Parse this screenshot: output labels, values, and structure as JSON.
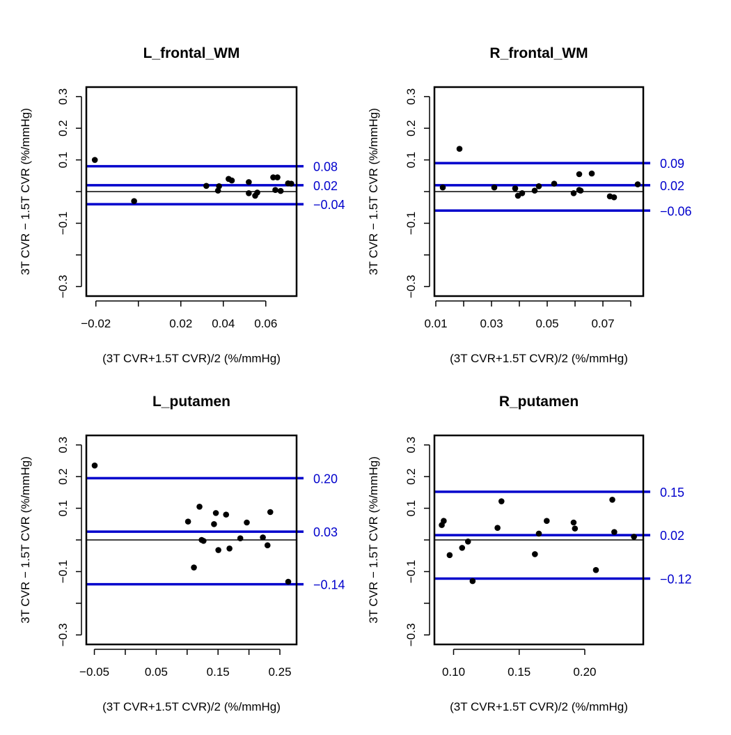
{
  "colors": {
    "limit_line": "#0000cc",
    "points": "#000000",
    "axes": "#000000",
    "zero_line": "#000000"
  },
  "chart_data": [
    {
      "type": "scatter",
      "title": "L_frontal_WM",
      "xlabel": "(3T CVR+1.5T CVR)/2 (%/mmHg)",
      "ylabel": "3T CVR − 1.5T CVR (%/mmHg)",
      "xlim": [
        -0.0245,
        0.0745
      ],
      "ylim": [
        -0.33,
        0.33
      ],
      "xticks": [
        -0.02,
        0.0,
        0.02,
        0.04,
        0.06
      ],
      "xtick_labels": [
        "−0.02",
        "",
        "0.02",
        "0.04",
        "0.06"
      ],
      "yticks": [
        -0.3,
        -0.2,
        -0.1,
        0.0,
        0.1,
        0.2,
        0.3
      ],
      "ytick_labels": [
        "−0.3",
        "",
        "−0.1",
        "",
        "0.1",
        "0.2",
        "0.3"
      ],
      "grid": false,
      "hlines": [
        {
          "value": 0.08,
          "label": "0.08",
          "role": "upper limit"
        },
        {
          "value": 0.02,
          "label": "0.02",
          "role": "mean difference"
        },
        {
          "value": -0.04,
          "label": "−0.04",
          "role": "lower limit"
        }
      ],
      "zero_line": 0.0,
      "points": [
        {
          "x": -0.0205,
          "y": 0.1
        },
        {
          "x": -0.002,
          "y": -0.03
        },
        {
          "x": 0.032,
          "y": 0.018
        },
        {
          "x": 0.0375,
          "y": 0.003
        },
        {
          "x": 0.038,
          "y": 0.017
        },
        {
          "x": 0.0425,
          "y": 0.04
        },
        {
          "x": 0.044,
          "y": 0.035
        },
        {
          "x": 0.052,
          "y": 0.03
        },
        {
          "x": 0.052,
          "y": -0.005
        },
        {
          "x": 0.055,
          "y": -0.013
        },
        {
          "x": 0.056,
          "y": -0.003
        },
        {
          "x": 0.0635,
          "y": 0.045
        },
        {
          "x": 0.0645,
          "y": 0.005
        },
        {
          "x": 0.0655,
          "y": 0.045
        },
        {
          "x": 0.067,
          "y": 0.002
        },
        {
          "x": 0.0705,
          "y": 0.026
        },
        {
          "x": 0.072,
          "y": 0.025
        }
      ]
    },
    {
      "type": "scatter",
      "title": "R_frontal_WM",
      "xlabel": "(3T CVR+1.5T CVR)/2 (%/mmHg)",
      "ylabel": "3T CVR − 1.5T CVR (%/mmHg)",
      "xlim": [
        0.0095,
        0.0845
      ],
      "ylim": [
        -0.33,
        0.33
      ],
      "xticks": [
        0.01,
        0.02,
        0.03,
        0.04,
        0.05,
        0.06,
        0.07,
        0.08
      ],
      "xtick_labels": [
        "0.01",
        "",
        "0.03",
        "",
        "0.05",
        "",
        "0.07",
        ""
      ],
      "yticks": [
        -0.3,
        -0.2,
        -0.1,
        0.0,
        0.1,
        0.2,
        0.3
      ],
      "ytick_labels": [
        "−0.3",
        "",
        "−0.1",
        "",
        "0.1",
        "0.2",
        "0.3"
      ],
      "grid": false,
      "hlines": [
        {
          "value": 0.09,
          "label": "0.09",
          "role": "upper limit"
        },
        {
          "value": 0.02,
          "label": "0.02",
          "role": "mean difference"
        },
        {
          "value": -0.06,
          "label": "−0.06",
          "role": "lower limit"
        }
      ],
      "zero_line": 0.0,
      "points": [
        {
          "x": 0.0125,
          "y": 0.013
        },
        {
          "x": 0.0185,
          "y": 0.135
        },
        {
          "x": 0.031,
          "y": 0.013
        },
        {
          "x": 0.0385,
          "y": 0.01
        },
        {
          "x": 0.0395,
          "y": -0.013
        },
        {
          "x": 0.041,
          "y": -0.005
        },
        {
          "x": 0.0455,
          "y": 0.003
        },
        {
          "x": 0.047,
          "y": 0.017
        },
        {
          "x": 0.0525,
          "y": 0.025
        },
        {
          "x": 0.0595,
          "y": -0.005
        },
        {
          "x": 0.0615,
          "y": 0.055
        },
        {
          "x": 0.0615,
          "y": 0.005
        },
        {
          "x": 0.062,
          "y": 0.003
        },
        {
          "x": 0.066,
          "y": 0.057
        },
        {
          "x": 0.0725,
          "y": -0.015
        },
        {
          "x": 0.074,
          "y": -0.018
        },
        {
          "x": 0.0825,
          "y": 0.023
        }
      ]
    },
    {
      "type": "scatter",
      "title": "L_putamen",
      "xlabel": "(3T CVR+1.5T CVR)/2 (%/mmHg)",
      "ylabel": "3T CVR − 1.5T CVR (%/mmHg)",
      "xlim": [
        -0.063,
        0.277
      ],
      "ylim": [
        -0.33,
        0.33
      ],
      "xticks": [
        -0.05,
        0.0,
        0.05,
        0.1,
        0.15,
        0.2,
        0.25
      ],
      "xtick_labels": [
        "−0.05",
        "",
        "0.05",
        "",
        "0.15",
        "",
        "0.25"
      ],
      "yticks": [
        -0.3,
        -0.2,
        -0.1,
        0.0,
        0.1,
        0.2,
        0.3
      ],
      "ytick_labels": [
        "−0.3",
        "",
        "−0.1",
        "",
        "0.1",
        "0.2",
        "0.3"
      ],
      "grid": false,
      "hlines": [
        {
          "value": 0.195,
          "label": "0.20",
          "role": "upper limit"
        },
        {
          "value": 0.026,
          "label": "0.03",
          "role": "mean difference"
        },
        {
          "value": -0.14,
          "label": "−0.14",
          "role": "lower limit"
        }
      ],
      "zero_line": 0.0,
      "points": [
        {
          "x": -0.0495,
          "y": 0.235
        },
        {
          "x": 0.1015,
          "y": 0.058
        },
        {
          "x": 0.111,
          "y": -0.087
        },
        {
          "x": 0.12,
          "y": 0.105
        },
        {
          "x": 0.1235,
          "y": 0.0
        },
        {
          "x": 0.1265,
          "y": -0.003
        },
        {
          "x": 0.1435,
          "y": 0.05
        },
        {
          "x": 0.1465,
          "y": 0.085
        },
        {
          "x": 0.1505,
          "y": -0.032
        },
        {
          "x": 0.163,
          "y": 0.08
        },
        {
          "x": 0.1685,
          "y": -0.027
        },
        {
          "x": 0.186,
          "y": 0.005
        },
        {
          "x": 0.1965,
          "y": 0.055
        },
        {
          "x": 0.2225,
          "y": 0.008
        },
        {
          "x": 0.23,
          "y": -0.017
        },
        {
          "x": 0.2345,
          "y": 0.088
        },
        {
          "x": 0.2635,
          "y": -0.132
        }
      ]
    },
    {
      "type": "scatter",
      "title": "R_putamen",
      "xlabel": "(3T CVR+1.5T CVR)/2 (%/mmHg)",
      "ylabel": "3T CVR − 1.5T CVR (%/mmHg)",
      "xlim": [
        0.0854,
        0.2446
      ],
      "ylim": [
        -0.33,
        0.33
      ],
      "xticks": [
        0.1,
        0.15,
        0.2
      ],
      "xtick_labels": [
        "0.10",
        "0.15",
        "0.20"
      ],
      "yticks": [
        -0.3,
        -0.2,
        -0.1,
        0.0,
        0.1,
        0.2,
        0.3
      ],
      "ytick_labels": [
        "−0.3",
        "",
        "−0.1",
        "",
        "0.1",
        "0.2",
        "0.3"
      ],
      "grid": false,
      "hlines": [
        {
          "value": 0.152,
          "label": "0.15",
          "role": "upper limit"
        },
        {
          "value": 0.015,
          "label": "0.02",
          "role": "mean difference"
        },
        {
          "value": -0.122,
          "label": "−0.12",
          "role": "lower limit"
        }
      ],
      "zero_line": 0.0,
      "points": [
        {
          "x": 0.091,
          "y": 0.047
        },
        {
          "x": 0.0925,
          "y": 0.06
        },
        {
          "x": 0.097,
          "y": -0.048
        },
        {
          "x": 0.1065,
          "y": -0.025
        },
        {
          "x": 0.111,
          "y": -0.005
        },
        {
          "x": 0.1145,
          "y": -0.13
        },
        {
          "x": 0.1335,
          "y": 0.038
        },
        {
          "x": 0.1365,
          "y": 0.122
        },
        {
          "x": 0.162,
          "y": -0.045
        },
        {
          "x": 0.165,
          "y": 0.02
        },
        {
          "x": 0.171,
          "y": 0.06
        },
        {
          "x": 0.1915,
          "y": 0.055
        },
        {
          "x": 0.1925,
          "y": 0.036
        },
        {
          "x": 0.2085,
          "y": -0.095
        },
        {
          "x": 0.221,
          "y": 0.127
        },
        {
          "x": 0.2225,
          "y": 0.025
        },
        {
          "x": 0.2375,
          "y": 0.01
        }
      ]
    }
  ]
}
